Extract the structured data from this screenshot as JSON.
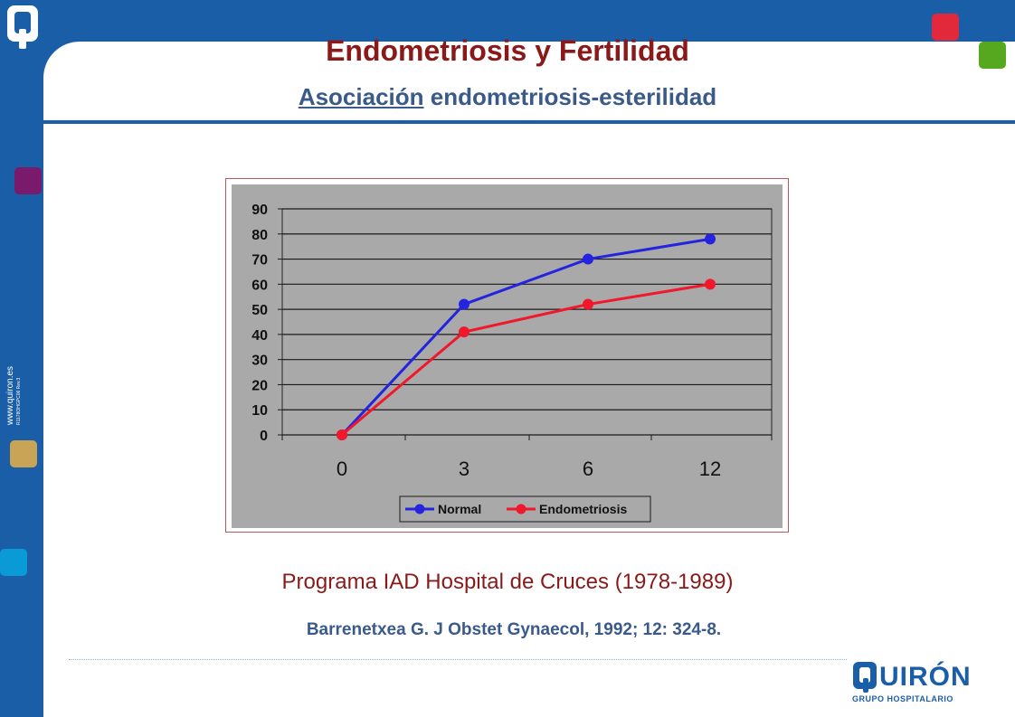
{
  "header": {
    "title": "Endometriosis y Fertilidad",
    "subtitle_link": "Asociación",
    "subtitle_rest": " endometriosis-esterilidad"
  },
  "sidebar": {
    "url": "www.quiron.es",
    "code": "R1178OHGPC06 Rev.3"
  },
  "footer": {
    "program": "Programa IAD Hospital de Cruces (1978-1989)",
    "reference": "Barrenetxea G. J Obstet Gynaecol, 1992; 12: 324-8."
  },
  "brand": {
    "name": "UIRÓN",
    "tagline": "GRUPO HOSPITALARIO"
  },
  "colors": {
    "frame": "#1a5ea8",
    "title": "#8a1a1a",
    "subtitle": "#3a5a8a",
    "normal": "#2424e0",
    "endometriosis": "#f0182a",
    "plot_bg": "#a9a9a9"
  },
  "chart_data": {
    "type": "line",
    "categories": [
      "0",
      "3",
      "6",
      "12"
    ],
    "series": [
      {
        "name": "Normal",
        "values": [
          0,
          52,
          70,
          78
        ],
        "color": "#2424e0"
      },
      {
        "name": "Endometriosis",
        "values": [
          0,
          41,
          52,
          60
        ],
        "color": "#f0182a"
      }
    ],
    "yticks": [
      "90",
      "80",
      "70",
      "60",
      "50",
      "40",
      "30",
      "20",
      "10",
      "0"
    ],
    "ylim": [
      0,
      90
    ],
    "grid": true,
    "legend_position": "bottom"
  }
}
